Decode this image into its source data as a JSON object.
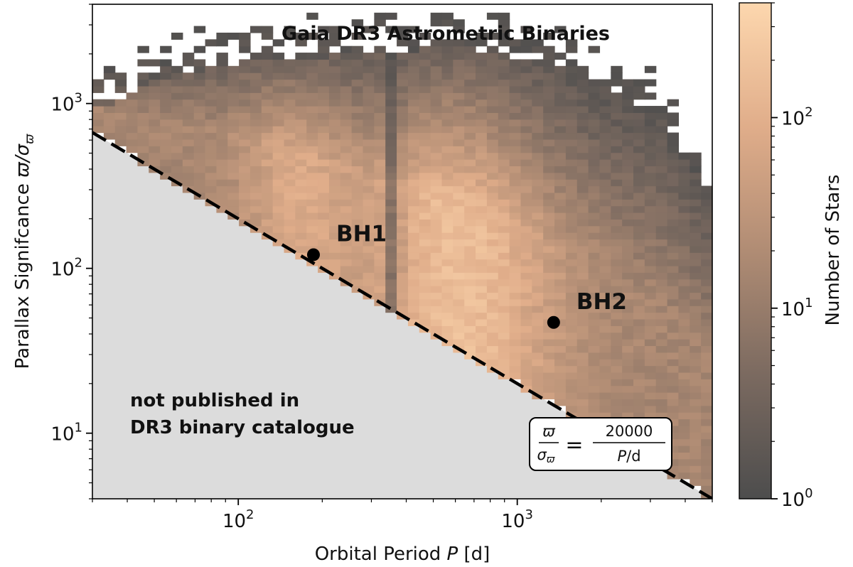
{
  "chart_data": {
    "type": "heatmap",
    "title": "Gaia DR3 Astrometric Binaries",
    "xlabel": {
      "pre": "Orbital Period ",
      "var": "P",
      "post": " [d]"
    },
    "ylabel": {
      "pre": "Parallax Signifcance ",
      "var": "ϖ/σ",
      "sub": "ϖ"
    },
    "colorbar_label": "Number of Stars",
    "x_scale": "log",
    "y_scale": "log",
    "xlim": [
      30,
      5000
    ],
    "ylim": [
      4,
      4000
    ],
    "colorbar_range": [
      1,
      400
    ],
    "x_ticks": [
      {
        "value": 100,
        "label": "10",
        "exp": "2"
      },
      {
        "value": 1000,
        "label": "10",
        "exp": "3"
      }
    ],
    "y_ticks": [
      {
        "value": 10,
        "label": "10",
        "exp": "1"
      },
      {
        "value": 100,
        "label": "10",
        "exp": "2"
      },
      {
        "value": 1000,
        "label": "10",
        "exp": "3"
      }
    ],
    "colorbar_ticks": [
      {
        "value": 1,
        "label": "10",
        "exp": "0"
      },
      {
        "value": 10,
        "label": "10",
        "exp": "1"
      },
      {
        "value": 100,
        "label": "10",
        "exp": "2"
      }
    ],
    "colormap": [
      "#4d4d4d",
      "#7b6a60",
      "#b08c74",
      "#e0ad8a",
      "#fdd7ae"
    ],
    "points": [
      {
        "name": "BH1",
        "period": 186,
        "parallax_significance": 121
      },
      {
        "name": "BH2",
        "period": 1350,
        "parallax_significance": 47
      }
    ],
    "cutoff_line": {
      "coefficient": 20000,
      "lhs_num": "ϖ",
      "lhs_den": "σ",
      "lhs_den_sub": "ϖ",
      "equals": "=",
      "rhs_num": "20000",
      "rhs_den_var": "P",
      "rhs_den_unit": "/d"
    },
    "excluded_region_label": [
      "not published in",
      "DR3 binary catalogue"
    ],
    "shaded_color": "#dcdcdc",
    "point_color": "#000000"
  }
}
